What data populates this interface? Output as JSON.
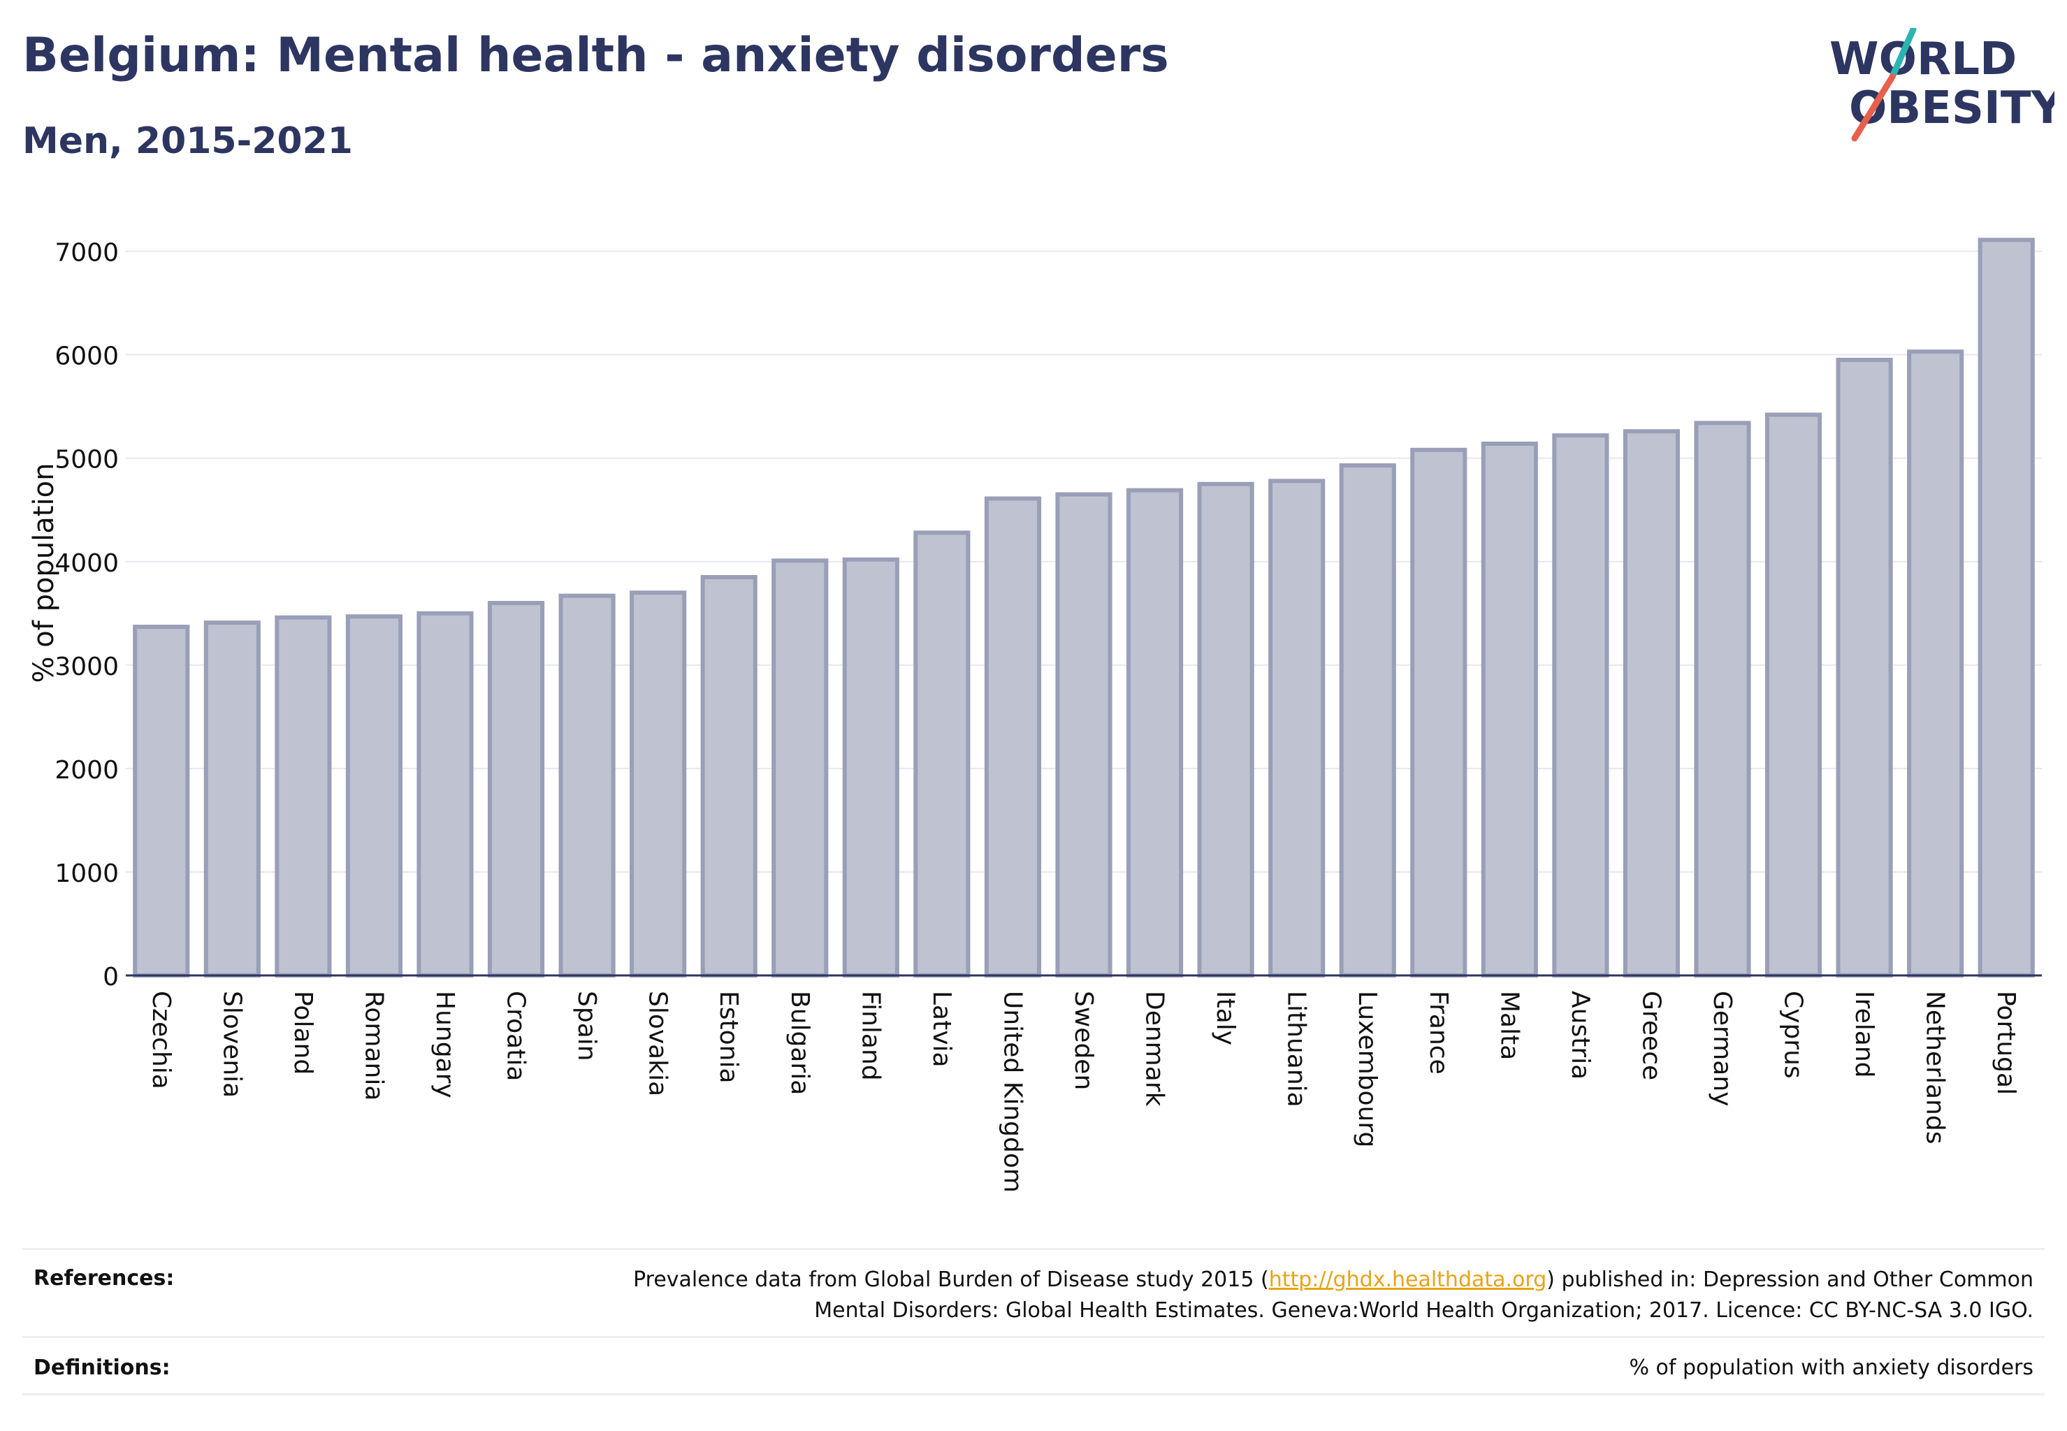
{
  "header": {
    "title": "Belgium: Mental health - anxiety disorders",
    "subtitle": "Men, 2015-2021"
  },
  "logo": {
    "line1": "WORLD",
    "line2": "OBESITY",
    "colors": {
      "text": "#2d3561",
      "slash_top": "#2bb5b0",
      "slash_bottom": "#e8604c"
    }
  },
  "chart_data": {
    "type": "bar",
    "ylabel": "% of population",
    "ylim": [
      0,
      7200
    ],
    "yticks": [
      0,
      1000,
      2000,
      3000,
      4000,
      5000,
      6000,
      7000
    ],
    "grid": true,
    "bar_fill": "#bfc2d0",
    "bar_stroke": "#9a9fb8",
    "categories": [
      "Czechia",
      "Slovenia",
      "Poland",
      "Romania",
      "Hungary",
      "Croatia",
      "Spain",
      "Slovakia",
      "Estonia",
      "Bulgaria",
      "Finland",
      "Latvia",
      "United Kingdom",
      "Sweden",
      "Denmark",
      "Italy",
      "Lithuania",
      "Luxembourg",
      "France",
      "Malta",
      "Austria",
      "Greece",
      "Germany",
      "Cyprus",
      "Ireland",
      "Netherlands",
      "Portugal"
    ],
    "values": [
      3370,
      3410,
      3460,
      3470,
      3500,
      3600,
      3670,
      3700,
      3850,
      4010,
      4020,
      4280,
      4610,
      4650,
      4690,
      4750,
      4780,
      4930,
      5080,
      5140,
      5220,
      5260,
      5340,
      5420,
      5950,
      6030,
      7110
    ]
  },
  "footer": {
    "references_label": "References:",
    "references_text_before": "Prevalence data from Global Burden of Disease study 2015 (",
    "references_link": "http://ghdx.healthdata.org",
    "references_text_after": ") published in: Depression and Other Common",
    "references_line2": "Mental Disorders: Global Health Estimates. Geneva:World Health Organization; 2017. Licence: CC BY-NC-SA 3.0 IGO.",
    "definitions_label": "Definitions:",
    "definitions_text": "% of population with anxiety disorders"
  }
}
